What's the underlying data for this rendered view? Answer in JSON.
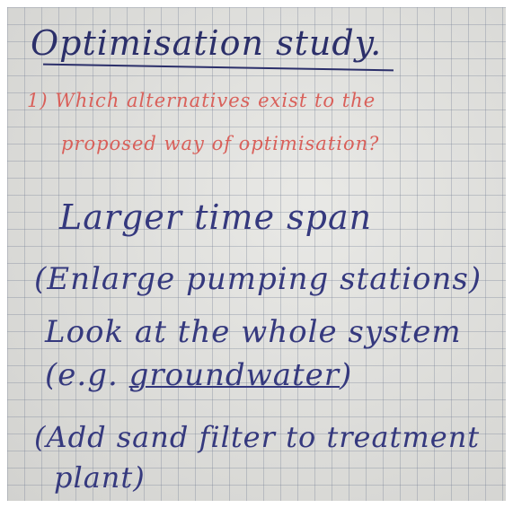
{
  "title": "Optimisation study.",
  "question": [
    "1) Which alternatives exist to the",
    "proposed way of optimisation?"
  ],
  "items": [
    "Larger time span",
    "(Enlarge pumping stations)",
    "Look at the whole system"
  ],
  "example": {
    "before": "(e.g.",
    "underlined": "groundwater",
    "after": ")"
  },
  "last": [
    "(Add sand filter to treatment",
    "plant)"
  ]
}
